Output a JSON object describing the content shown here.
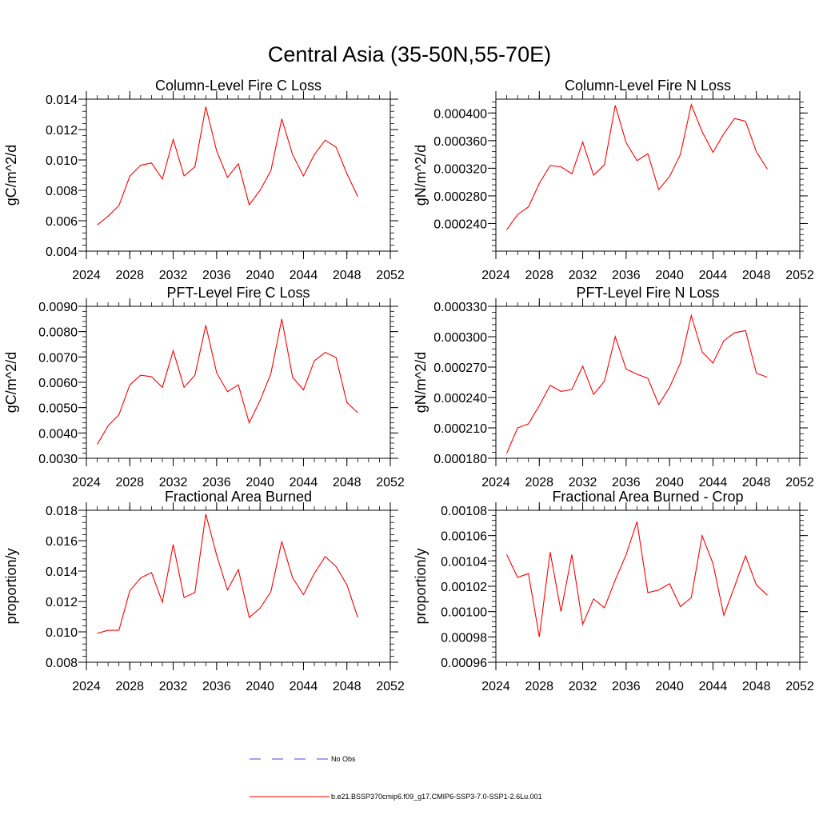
{
  "figure": {
    "title": "Central Asia (35-50N,55-70E)"
  },
  "legend": [
    {
      "label": "No Obs",
      "color": "#4a4ad8",
      "style": "dashed"
    },
    {
      "label": "b.e21.BSSP370cmip6.f09_g17.CMIP6-SSP3-7.0-SSP1-2.6Lu.001",
      "color": "#ff0000",
      "style": "solid"
    }
  ],
  "chart_data": [
    {
      "type": "line",
      "title": "Column-Level Fire C Loss",
      "ylabel": "gC/m^2/d",
      "xlim": [
        2024,
        2052
      ],
      "ylim": [
        0.004,
        0.014
      ],
      "xticks": [
        "2024",
        "2028",
        "2032",
        "2036",
        "2040",
        "2044",
        "2048",
        "2052"
      ],
      "yticks": [
        "0.004",
        "0.006",
        "0.008",
        "0.010",
        "0.012",
        "0.014"
      ],
      "series": [
        {
          "color": "#ff0000",
          "x": [
            2025,
            2026,
            2027,
            2028,
            2029,
            2030,
            2031,
            2032,
            2033,
            2034,
            2035,
            2036,
            2037,
            2038,
            2039,
            2040,
            2041,
            2042,
            2043,
            2044,
            2045,
            2046,
            2047,
            2048,
            2049
          ],
          "y": [
            0.00572,
            0.0063,
            0.007,
            0.00893,
            0.00965,
            0.0098,
            0.00875,
            0.01135,
            0.00895,
            0.00955,
            0.0135,
            0.0106,
            0.00885,
            0.00975,
            0.00705,
            0.008,
            0.0093,
            0.0127,
            0.01035,
            0.00895,
            0.01035,
            0.0113,
            0.01085,
            0.0091,
            0.0076
          ]
        }
      ]
    },
    {
      "type": "line",
      "title": "Column-Level Fire N Loss",
      "ylabel": "gN/m^2/d",
      "xlim": [
        2024,
        2052
      ],
      "ylim": [
        0.0002,
        0.00042
      ],
      "xticks": [
        "2024",
        "2028",
        "2032",
        "2036",
        "2040",
        "2044",
        "2048",
        "2052"
      ],
      "yticks": [
        "0.000240",
        "0.000280",
        "0.000320",
        "0.000360",
        "0.000400"
      ],
      "series": [
        {
          "color": "#ff0000",
          "x": [
            2025,
            2026,
            2027,
            2028,
            2029,
            2030,
            2031,
            2032,
            2033,
            2034,
            2035,
            2036,
            2037,
            2038,
            2039,
            2040,
            2041,
            2042,
            2043,
            2044,
            2045,
            2046,
            2047,
            2048,
            2049
          ],
          "y": [
            0.000231,
            0.000253,
            0.000264,
            0.000298,
            0.000324,
            0.000322,
            0.000312,
            0.000358,
            0.00031,
            0.000325,
            0.000411,
            0.000357,
            0.000331,
            0.000341,
            0.000289,
            0.000308,
            0.00034,
            0.000412,
            0.000373,
            0.000343,
            0.00037,
            0.000392,
            0.000388,
            0.000344,
            0.000319
          ]
        }
      ]
    },
    {
      "type": "line",
      "title": "PFT-Level Fire C Loss",
      "ylabel": "gC/m^2/d",
      "xlim": [
        2024,
        2052
      ],
      "ylim": [
        0.003,
        0.009
      ],
      "xticks": [
        "2024",
        "2028",
        "2032",
        "2036",
        "2040",
        "2044",
        "2048",
        "2052"
      ],
      "yticks": [
        "0.0030",
        "0.0040",
        "0.0050",
        "0.0060",
        "0.0070",
        "0.0080",
        "0.0090"
      ],
      "series": [
        {
          "color": "#ff0000",
          "x": [
            2025,
            2026,
            2027,
            2028,
            2029,
            2030,
            2031,
            2032,
            2033,
            2034,
            2035,
            2036,
            2037,
            2038,
            2039,
            2040,
            2041,
            2042,
            2043,
            2044,
            2045,
            2046,
            2047,
            2048,
            2049
          ],
          "y": [
            0.00355,
            0.00428,
            0.00472,
            0.0059,
            0.00628,
            0.00622,
            0.0058,
            0.00725,
            0.0058,
            0.00628,
            0.00825,
            0.00638,
            0.00563,
            0.0059,
            0.0044,
            0.00528,
            0.00635,
            0.0085,
            0.0062,
            0.0057,
            0.00685,
            0.00718,
            0.00698,
            0.0052,
            0.0048
          ]
        }
      ]
    },
    {
      "type": "line",
      "title": "PFT-Level Fire N Loss",
      "ylabel": "gN/m^2/d",
      "xlim": [
        2024,
        2052
      ],
      "ylim": [
        0.00018,
        0.00033
      ],
      "xticks": [
        "2024",
        "2028",
        "2032",
        "2036",
        "2040",
        "2044",
        "2048",
        "2052"
      ],
      "yticks": [
        "0.000180",
        "0.000210",
        "0.000240",
        "0.000270",
        "0.000300",
        "0.000330"
      ],
      "series": [
        {
          "color": "#ff0000",
          "x": [
            2025,
            2026,
            2027,
            2028,
            2029,
            2030,
            2031,
            2032,
            2033,
            2034,
            2035,
            2036,
            2037,
            2038,
            2039,
            2040,
            2041,
            2042,
            2043,
            2044,
            2045,
            2046,
            2047,
            2048,
            2049
          ],
          "y": [
            0.000185,
            0.00021,
            0.000214,
            0.000232,
            0.000252,
            0.000246,
            0.000248,
            0.000271,
            0.000243,
            0.000256,
            0.0003,
            0.000268,
            0.000263,
            0.000259,
            0.000233,
            0.00025,
            0.000274,
            0.000321,
            0.000285,
            0.000274,
            0.000296,
            0.000304,
            0.000306,
            0.000264,
            0.00026
          ]
        }
      ]
    },
    {
      "type": "line",
      "title": "Fractional Area Burned",
      "ylabel": "proportion/y",
      "xlim": [
        2024,
        2052
      ],
      "ylim": [
        0.008,
        0.018
      ],
      "xticks": [
        "2024",
        "2028",
        "2032",
        "2036",
        "2040",
        "2044",
        "2048",
        "2052"
      ],
      "yticks": [
        "0.008",
        "0.010",
        "0.012",
        "0.014",
        "0.016",
        "0.018"
      ],
      "series": [
        {
          "color": "#ff0000",
          "x": [
            2025,
            2026,
            2027,
            2028,
            2029,
            2030,
            2031,
            2032,
            2033,
            2034,
            2035,
            2036,
            2037,
            2038,
            2039,
            2040,
            2041,
            2042,
            2043,
            2044,
            2045,
            2046,
            2047,
            2048,
            2049
          ],
          "y": [
            0.0099,
            0.0101,
            0.0101,
            0.0127,
            0.01355,
            0.0139,
            0.01195,
            0.01575,
            0.01225,
            0.0126,
            0.01775,
            0.01505,
            0.01275,
            0.0141,
            0.01095,
            0.01155,
            0.01265,
            0.01595,
            0.01355,
            0.01245,
            0.01385,
            0.01495,
            0.0143,
            0.0131,
            0.01095
          ]
        }
      ]
    },
    {
      "type": "line",
      "title": "Fractional Area Burned - Crop",
      "ylabel": "proportion/y",
      "xlim": [
        2024,
        2052
      ],
      "ylim": [
        0.00096,
        0.00108
      ],
      "xticks": [
        "2024",
        "2028",
        "2032",
        "2036",
        "2040",
        "2044",
        "2048",
        "2052"
      ],
      "yticks": [
        "0.00096",
        "0.00098",
        "0.00100",
        "0.00102",
        "0.00104",
        "0.00106",
        "0.00108"
      ],
      "series": [
        {
          "color": "#ff0000",
          "x": [
            2025,
            2026,
            2027,
            2028,
            2029,
            2030,
            2031,
            2032,
            2033,
            2034,
            2035,
            2036,
            2037,
            2038,
            2039,
            2040,
            2041,
            2042,
            2043,
            2044,
            2045,
            2046,
            2047,
            2048,
            2049
          ],
          "y": [
            0.001045,
            0.001027,
            0.00103,
            0.00098,
            0.001047,
            0.001,
            0.001045,
            0.00099,
            0.00101,
            0.001003,
            0.001025,
            0.001045,
            0.001071,
            0.001015,
            0.001017,
            0.001022,
            0.001004,
            0.001011,
            0.00106,
            0.001038,
            0.000997,
            0.00102,
            0.001044,
            0.001021,
            0.001013
          ]
        }
      ]
    }
  ]
}
